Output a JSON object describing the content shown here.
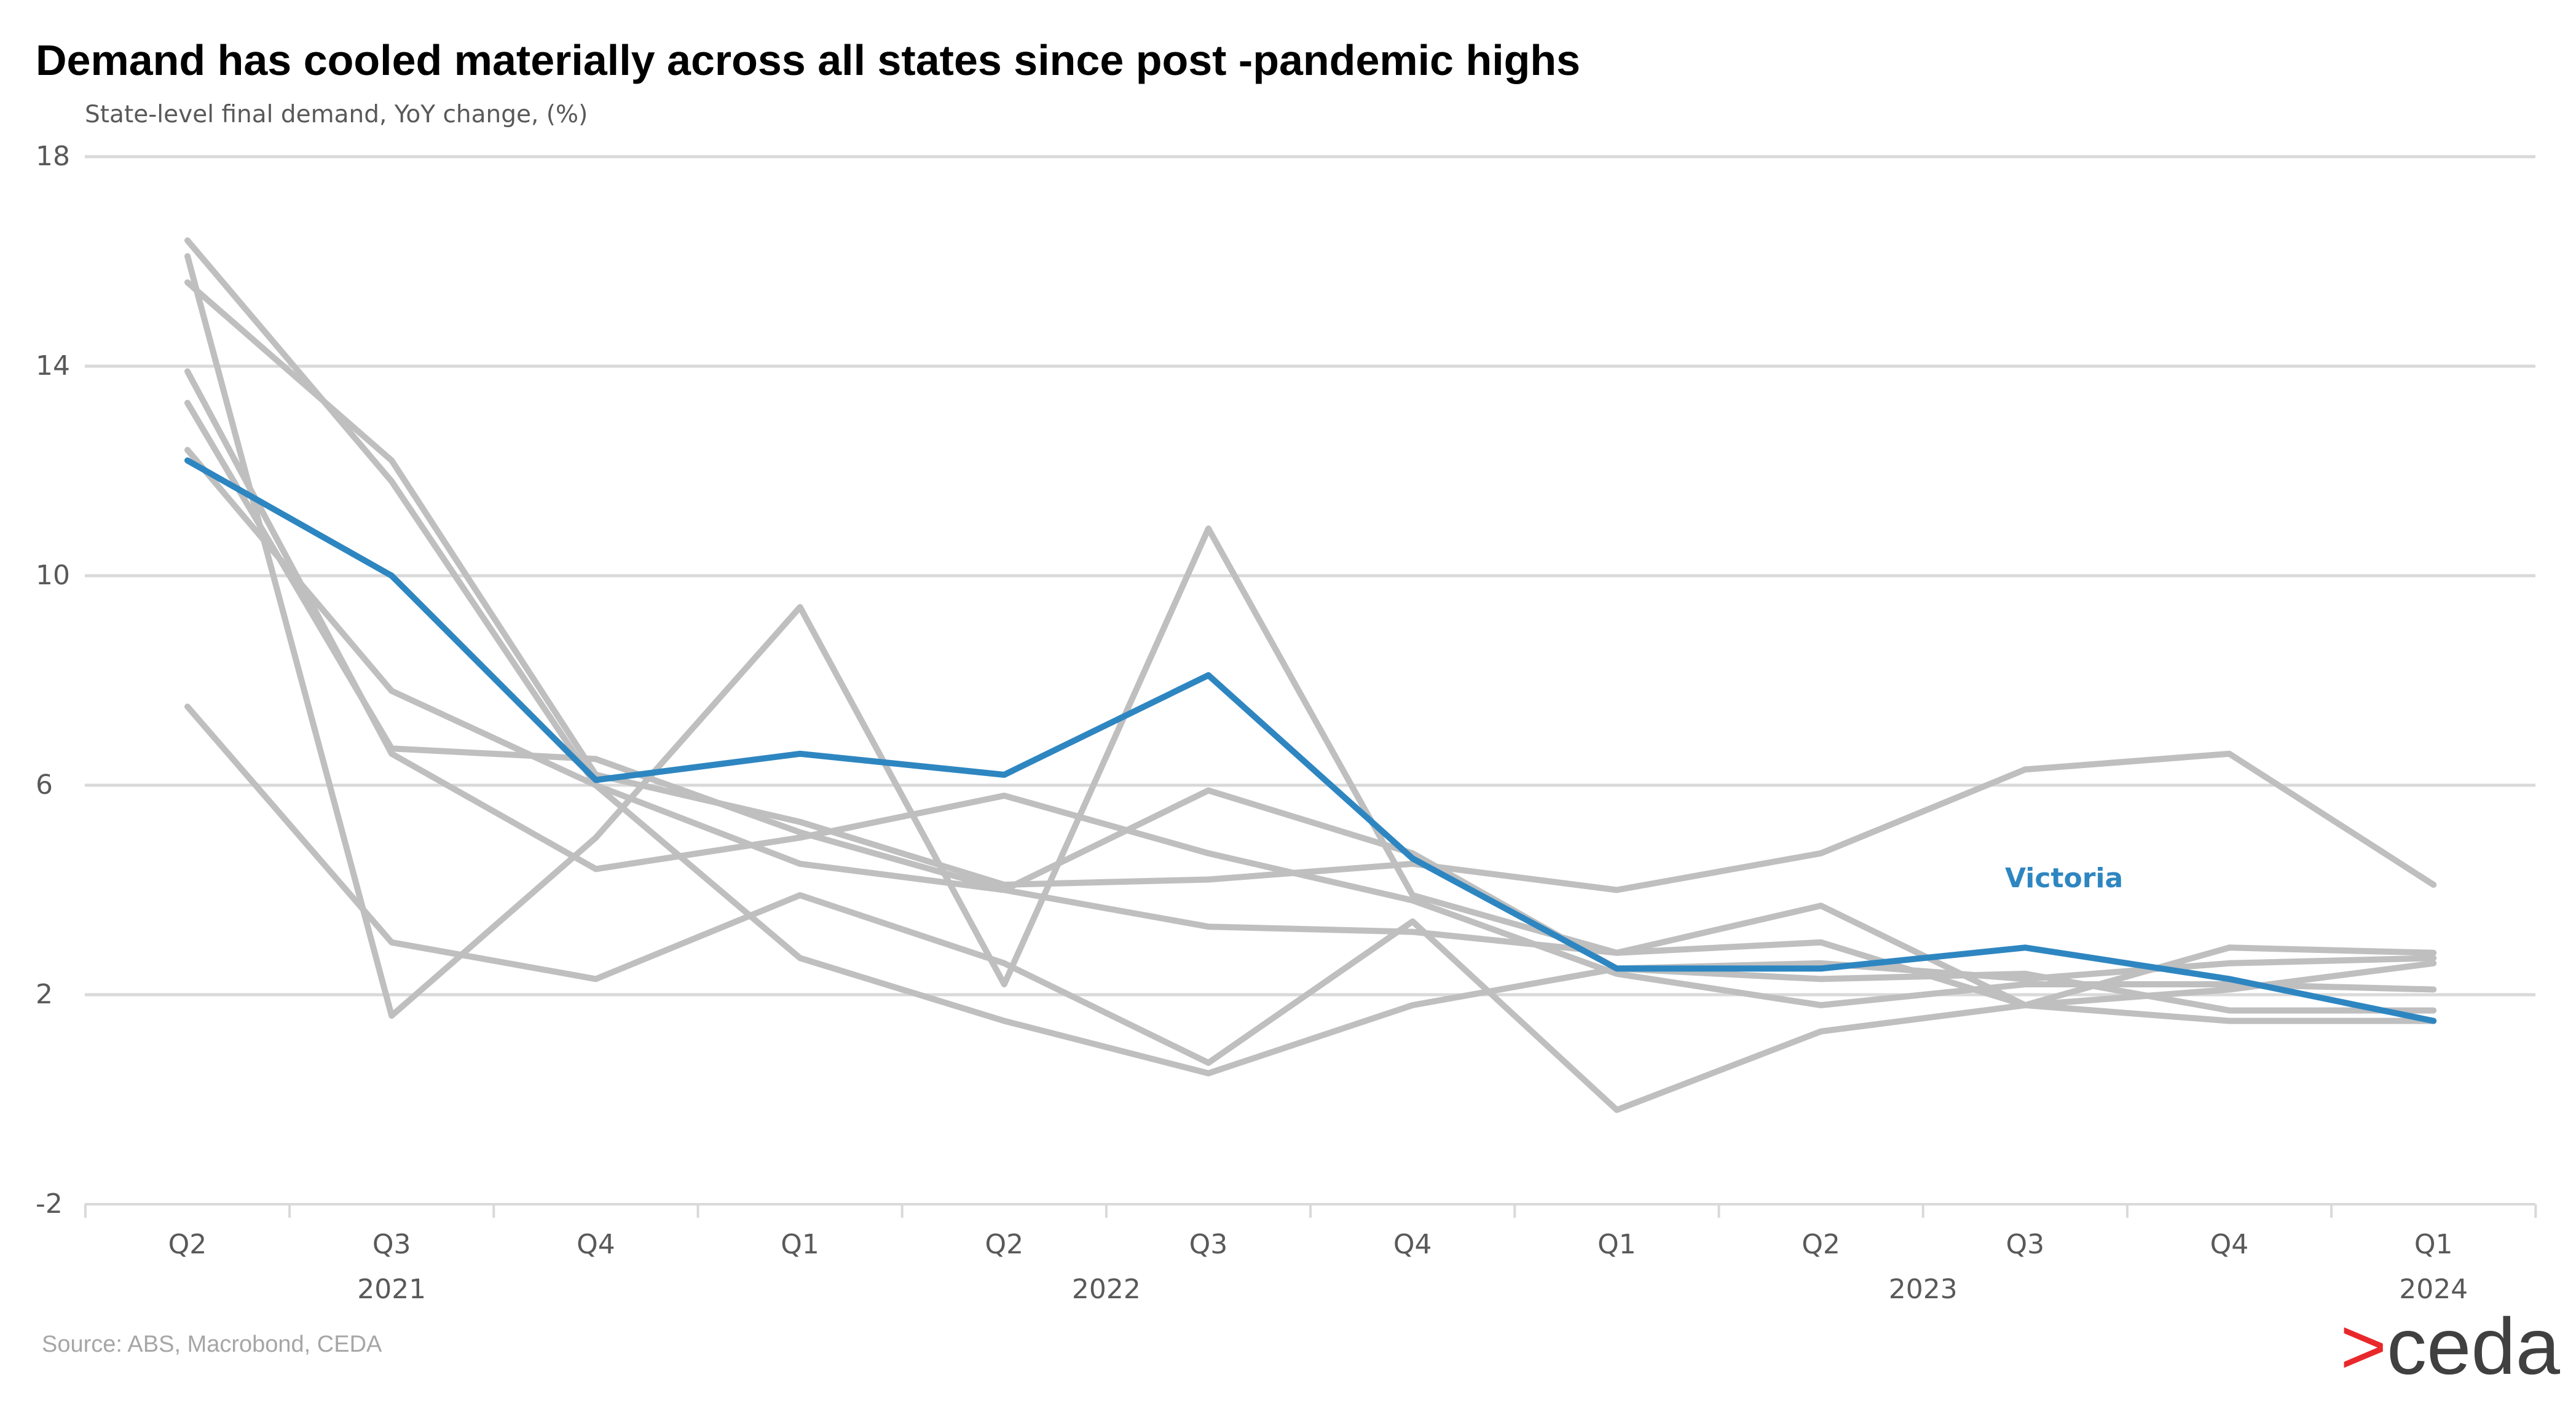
{
  "chart_data": {
    "type": "line",
    "title": "Demand has cooled materially across all states since post -pandemic highs",
    "subtitle": "State-level final demand, YoY change, (%)",
    "xlabel": "",
    "ylabel": "",
    "ylim": [
      -2,
      18
    ],
    "yticks": [
      "18",
      "14",
      "10",
      "6",
      "2",
      "-2"
    ],
    "categories": [
      "Q2",
      "Q3",
      "Q4",
      "Q1",
      "Q2",
      "Q3",
      "Q4",
      "Q1",
      "Q2",
      "Q3",
      "Q4",
      "Q1"
    ],
    "years": [
      {
        "label": "2021",
        "center_index": 1
      },
      {
        "label": "2022",
        "center_index": 4.5
      },
      {
        "label": "2023",
        "center_index": 8.5
      },
      {
        "label": "2024",
        "center_index": 11
      }
    ],
    "grid": true,
    "legend": "none",
    "highlight_color": "#2e86c1",
    "other_color": "#bfbfbf",
    "series": [
      {
        "name": "Victoria",
        "highlight": true,
        "values": [
          12.2,
          10.0,
          6.1,
          6.6,
          6.2,
          8.1,
          4.6,
          2.5,
          2.5,
          2.9,
          2.3,
          1.5
        ]
      },
      {
        "values": [
          16.1,
          1.6,
          5.0,
          9.4,
          2.2,
          10.9,
          3.9,
          2.8,
          3.7,
          1.8,
          2.1,
          2.6
        ]
      },
      {
        "values": [
          15.6,
          12.2,
          6.2,
          5.3,
          4.1,
          4.2,
          4.5,
          4.0,
          4.7,
          6.3,
          6.6,
          4.1
        ]
      },
      {
        "values": [
          16.4,
          11.8,
          6.0,
          2.7,
          1.5,
          0.5,
          1.8,
          2.5,
          2.6,
          2.3,
          2.6,
          2.7
        ]
      },
      {
        "values": [
          13.9,
          6.6,
          4.4,
          5.0,
          5.8,
          4.7,
          3.8,
          2.4,
          1.8,
          2.2,
          2.2,
          2.1
        ]
      },
      {
        "values": [
          13.3,
          6.7,
          6.5,
          5.1,
          4.0,
          5.9,
          4.7,
          2.5,
          2.3,
          2.4,
          1.7,
          1.7
        ]
      },
      {
        "values": [
          12.4,
          7.8,
          6.0,
          4.5,
          4.0,
          3.3,
          3.2,
          2.8,
          3.0,
          1.8,
          1.5,
          1.5
        ]
      },
      {
        "values": [
          7.5,
          3.0,
          2.3,
          3.9,
          2.6,
          0.7,
          3.4,
          -0.2,
          1.3,
          1.8,
          2.9,
          2.8
        ]
      }
    ]
  },
  "annotation": {
    "text": "Victoria"
  },
  "source": "Source: ABS, Macrobond, CEDA",
  "logo": {
    "arrow": ">",
    "text": "ceda",
    "arrow_color": "#e8282b",
    "text_color": "#404040"
  }
}
